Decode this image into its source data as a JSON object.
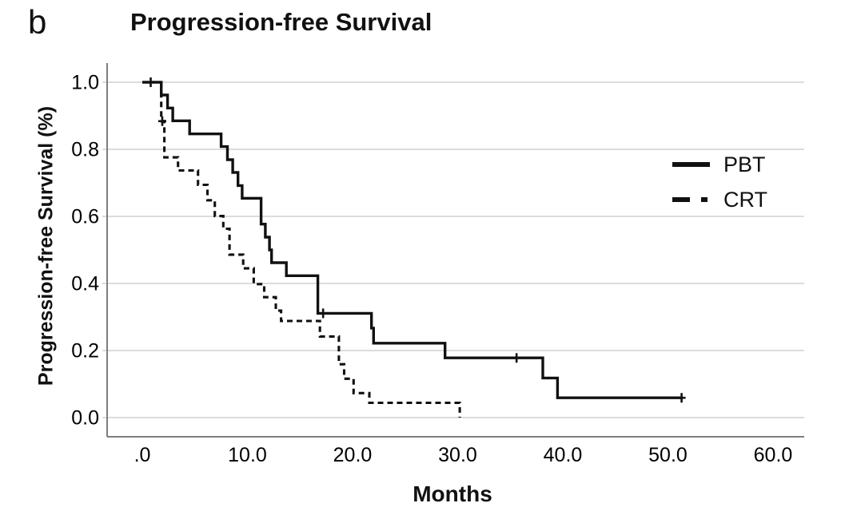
{
  "figure": {
    "panel_label": "b"
  },
  "chart_data": {
    "type": "line",
    "subtype": "kaplan_meier_step",
    "title": "Progression-free Survival",
    "xlabel": "Months",
    "ylabel": "Progression-free Survival (%)",
    "xlim": [
      -3.4,
      63.5
    ],
    "ylim": [
      -0.057,
      1.057
    ],
    "xticks": [
      0,
      10,
      20,
      30,
      40,
      50,
      60
    ],
    "xtick_labels": [
      ".0",
      "10.0",
      "20.0",
      "30.0",
      "40.0",
      "50.0",
      "60.0"
    ],
    "yticks": [
      0.0,
      0.2,
      0.4,
      0.6,
      0.8,
      1.0
    ],
    "ytick_labels": [
      "0.0",
      "0.2",
      "0.4",
      "0.6",
      "0.8",
      "1.0"
    ],
    "grid": "horizontal-only",
    "colors": {
      "curve": "#111111",
      "grid": "#c6c6c6",
      "axis": "#7d7d7d",
      "text": "#000000",
      "background": "#ffffff"
    },
    "legend": {
      "position": "upper-right-inside",
      "entries": [
        {
          "label": "PBT",
          "line_style": "solid"
        },
        {
          "label": "CRT",
          "line_style": "dashed"
        }
      ]
    },
    "series": [
      {
        "name": "PBT",
        "line_style": "solid",
        "start": [
          0,
          1.0
        ],
        "steps": [
          [
            1.8,
            0.962
          ],
          [
            2.4,
            0.923
          ],
          [
            2.9,
            0.885
          ],
          [
            4.5,
            0.846
          ],
          [
            7.5,
            0.808
          ],
          [
            8.1,
            0.769
          ],
          [
            8.6,
            0.731
          ],
          [
            9.1,
            0.692
          ],
          [
            9.5,
            0.654
          ],
          [
            11.3,
            0.577
          ],
          [
            11.7,
            0.538
          ],
          [
            12.1,
            0.5
          ],
          [
            12.3,
            0.462
          ],
          [
            13.7,
            0.423
          ],
          [
            16.7,
            0.311
          ],
          [
            21.8,
            0.267
          ],
          [
            22.0,
            0.222
          ],
          [
            28.8,
            0.178
          ],
          [
            38.1,
            0.118
          ],
          [
            39.5,
            0.059
          ]
        ],
        "end_month": 51.3,
        "censor_marks": [
          [
            0.8,
            1.0
          ],
          [
            17.2,
            0.311
          ],
          [
            35.6,
            0.178
          ],
          [
            51.3,
            0.059
          ]
        ]
      },
      {
        "name": "CRT",
        "line_style": "dashed",
        "start": [
          0,
          1.0
        ],
        "steps": [
          [
            1.8,
            0.884
          ],
          [
            2.1,
            0.776
          ],
          [
            3.4,
            0.737
          ],
          [
            5.3,
            0.694
          ],
          [
            6.2,
            0.648
          ],
          [
            6.9,
            0.601
          ],
          [
            7.7,
            0.563
          ],
          [
            8.3,
            0.486
          ],
          [
            9.6,
            0.445
          ],
          [
            10.6,
            0.398
          ],
          [
            11.6,
            0.359
          ],
          [
            12.7,
            0.319
          ],
          [
            13.2,
            0.288
          ],
          [
            16.9,
            0.242
          ],
          [
            18.7,
            0.159
          ],
          [
            19.2,
            0.116
          ],
          [
            20.1,
            0.073
          ],
          [
            21.6,
            0.044
          ],
          [
            30.2,
            0.0
          ]
        ],
        "end_month": 30.2,
        "censor_marks": [
          [
            1.9,
            0.884
          ]
        ]
      }
    ]
  }
}
